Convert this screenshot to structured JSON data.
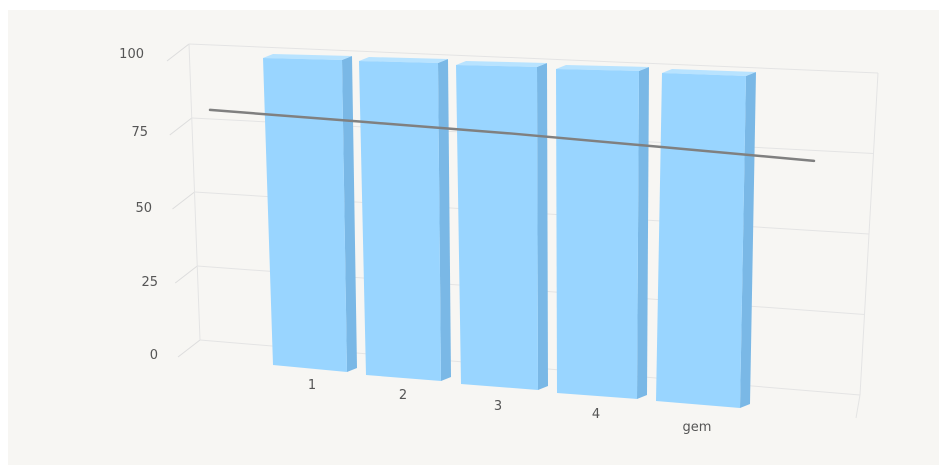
{
  "chart_data": {
    "type": "bar",
    "style": "3d",
    "categories": [
      "1",
      "2",
      "3",
      "4",
      "gem"
    ],
    "series": [
      {
        "type": "bar",
        "values": [
          100,
          100,
          100,
          100,
          100
        ],
        "color": "#99d5ff"
      },
      {
        "type": "line",
        "values": [
          78,
          77,
          76,
          74.5,
          73
        ],
        "color": "#808080"
      }
    ],
    "yticks": [
      "0",
      "25",
      "50",
      "75",
      "100"
    ],
    "ylim": [
      0,
      100
    ],
    "grid": true,
    "legend": "none",
    "title": "",
    "xlabel": "",
    "ylabel": ""
  }
}
